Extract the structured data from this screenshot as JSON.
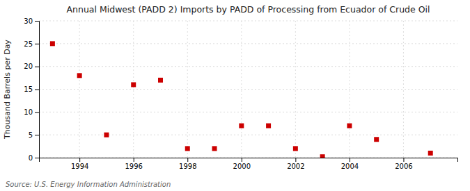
{
  "chart_data": {
    "type": "scatter",
    "title": "Annual Midwest (PADD 2) Imports by PADD of Processing from Ecuador of Crude Oil",
    "ylabel": "Thousand Barrels per Day",
    "annotations": [
      "Source: U.S. Energy Information Administration"
    ],
    "x": [
      1993,
      1994,
      1995,
      1996,
      1997,
      1998,
      1999,
      2000,
      2001,
      2002,
      2003,
      2004,
      2005,
      2007
    ],
    "values": [
      25.0,
      18.0,
      5.0,
      16.0,
      17.0,
      2.0,
      2.0,
      7.0,
      7.0,
      2.0,
      0.2,
      7.0,
      4.0,
      1.0
    ],
    "color": "#cc0000",
    "marker": "square",
    "xlim": [
      1992.5,
      2008
    ],
    "ylim": [
      0,
      30
    ],
    "xticks": [
      1994,
      1996,
      1998,
      2000,
      2002,
      2004,
      2006
    ],
    "yticks": [
      0,
      5,
      10,
      15,
      20,
      25,
      30
    ],
    "grid": true
  }
}
